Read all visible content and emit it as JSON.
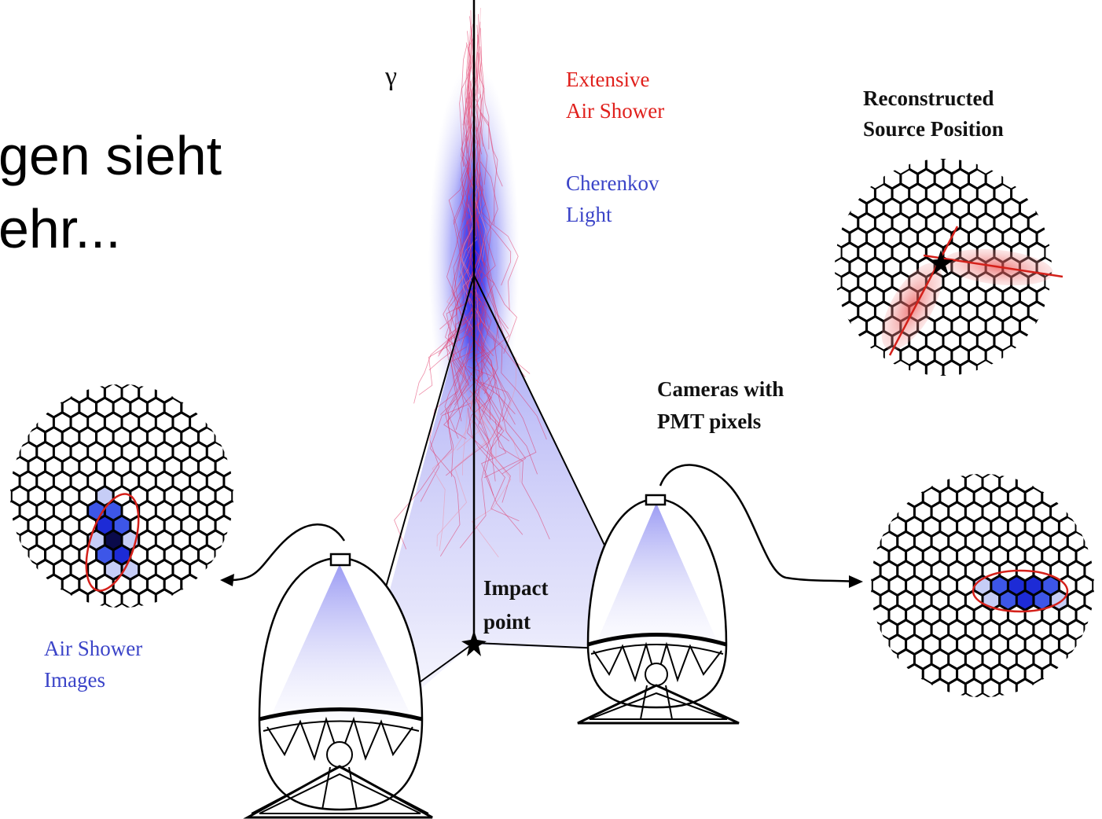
{
  "slide_text": {
    "line1": "gen sieht",
    "line2": "ehr..."
  },
  "labels": {
    "gamma": "γ",
    "extensive_air_shower": [
      "Extensive",
      "Air Shower"
    ],
    "cherenkov_light": [
      "Cherenkov",
      "Light"
    ],
    "reconstructed_source_position": [
      "Reconstructed",
      "Source Position"
    ],
    "cameras_with_pmt_pixels": [
      "Cameras with",
      "PMT pixels"
    ],
    "impact_point": [
      "Impact",
      "point"
    ],
    "air_shower_images": [
      "Air Shower",
      "Images"
    ]
  },
  "colors": {
    "shower_red": "#e0201c",
    "cherenkov_blue": "#2a2ae8",
    "label_blue": "#3b44c8",
    "pixel_outline": "#000000",
    "ellipse_red": "#d4201a"
  }
}
